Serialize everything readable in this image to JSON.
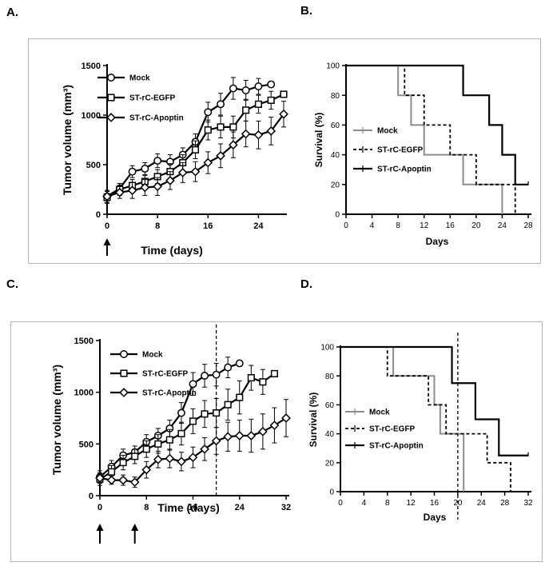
{
  "panel_letters": [
    "A.",
    "B.",
    "C.",
    "D."
  ],
  "colors": {
    "gray_line": "#8c8c8c",
    "box_border": "#b5b5b5",
    "black": "#000000"
  },
  "chart_data": [
    {
      "id": "A",
      "type": "line",
      "title": "",
      "xlabel": "Time (days)",
      "ylabel": "Tumor volume (mm³)",
      "xlim": [
        0,
        28
      ],
      "ylim": [
        0,
        1500
      ],
      "xticks": [
        0,
        8,
        16,
        24
      ],
      "yticks": [
        0,
        500,
        1000,
        1500
      ],
      "legend": [
        "Mock",
        "ST-rC-EGFP",
        "ST-rC-Apoptin"
      ],
      "arrows_at_day": [
        0
      ],
      "series": [
        {
          "name": "Mock",
          "marker": "circle",
          "x": [
            0,
            2,
            4,
            6,
            8,
            10,
            12,
            14,
            16,
            18,
            20,
            22,
            24,
            26
          ],
          "y": [
            180,
            260,
            430,
            460,
            540,
            530,
            600,
            730,
            1030,
            1110,
            1270,
            1250,
            1290,
            1310
          ],
          "err": [
            60,
            50,
            60,
            60,
            70,
            70,
            70,
            80,
            100,
            110,
            110,
            100,
            80,
            0
          ]
        },
        {
          "name": "ST-rC-EGFP",
          "marker": "square",
          "x": [
            0,
            2,
            4,
            6,
            8,
            10,
            12,
            14,
            16,
            18,
            20,
            22,
            24,
            26,
            28
          ],
          "y": [
            170,
            250,
            290,
            330,
            380,
            430,
            520,
            650,
            850,
            880,
            880,
            1050,
            1110,
            1150,
            1210
          ],
          "err": [
            60,
            60,
            60,
            60,
            70,
            80,
            80,
            90,
            100,
            110,
            110,
            110,
            90,
            90,
            0
          ]
        },
        {
          "name": "ST-rC-Apoptin",
          "marker": "diamond",
          "x": [
            0,
            2,
            4,
            6,
            8,
            10,
            12,
            14,
            16,
            18,
            20,
            22,
            24,
            26,
            28
          ],
          "y": [
            180,
            220,
            240,
            270,
            280,
            340,
            420,
            430,
            520,
            590,
            700,
            810,
            800,
            840,
            1010
          ],
          "err": [
            60,
            60,
            80,
            80,
            90,
            90,
            100,
            100,
            110,
            120,
            130,
            130,
            140,
            140,
            130
          ]
        }
      ]
    },
    {
      "id": "B",
      "type": "line",
      "title": "",
      "xlabel": "Days",
      "ylabel": "Survival (%)",
      "xlim": [
        0,
        28
      ],
      "ylim": [
        0,
        100
      ],
      "xticks": [
        0,
        4,
        8,
        12,
        16,
        20,
        24,
        28
      ],
      "yticks": [
        0,
        20,
        40,
        60,
        80,
        100
      ],
      "legend": [
        "Mock",
        "ST-rC-EGFP",
        "ST-rC-Apoptin"
      ],
      "series": [
        {
          "name": "Mock",
          "style": "gray-solid",
          "x": [
            0,
            8,
            8,
            10,
            10,
            12,
            12,
            18,
            18,
            24,
            24
          ],
          "y": [
            100,
            100,
            80,
            80,
            60,
            60,
            40,
            40,
            20,
            20,
            0
          ]
        },
        {
          "name": "ST-rC-EGFP",
          "style": "black-dashed",
          "x": [
            0,
            9,
            9,
            12,
            12,
            16,
            16,
            20,
            20,
            26,
            26
          ],
          "y": [
            100,
            100,
            80,
            80,
            60,
            60,
            40,
            40,
            20,
            20,
            0
          ]
        },
        {
          "name": "ST-rC-Apoptin",
          "style": "black-solid",
          "x": [
            0,
            18,
            18,
            22,
            22,
            24,
            24,
            26,
            26,
            28
          ],
          "y": [
            100,
            100,
            80,
            80,
            60,
            60,
            40,
            40,
            20,
            20
          ]
        }
      ]
    },
    {
      "id": "C",
      "type": "line",
      "title": "",
      "xlabel": "Time (days)",
      "ylabel": "Tumor volume (mm³)",
      "xlim": [
        0,
        32
      ],
      "ylim": [
        0,
        1500
      ],
      "xticks": [
        0,
        8,
        16,
        24,
        32
      ],
      "yticks": [
        0,
        500,
        1000,
        1500
      ],
      "legend": [
        "Mock",
        "ST-rC-EGFP",
        "ST-rC-Apoptin"
      ],
      "arrows_at_day": [
        0,
        6
      ],
      "dashed_vline_day": 20,
      "series": [
        {
          "name": "Mock",
          "marker": "circle",
          "x": [
            0,
            2,
            4,
            6,
            8,
            10,
            12,
            14,
            16,
            18,
            20,
            22,
            24
          ],
          "y": [
            180,
            280,
            390,
            420,
            520,
            580,
            650,
            800,
            1080,
            1160,
            1170,
            1240,
            1280
          ],
          "err": [
            60,
            60,
            60,
            60,
            70,
            70,
            80,
            100,
            110,
            110,
            110,
            100,
            0
          ]
        },
        {
          "name": "ST-rC-EGFP",
          "marker": "square",
          "x": [
            0,
            2,
            4,
            6,
            8,
            10,
            12,
            14,
            16,
            18,
            20,
            22,
            24,
            26,
            28,
            30
          ],
          "y": [
            160,
            230,
            320,
            380,
            450,
            500,
            540,
            600,
            720,
            790,
            800,
            880,
            950,
            1140,
            1100,
            1180
          ],
          "err": [
            60,
            60,
            70,
            70,
            80,
            90,
            100,
            110,
            120,
            130,
            140,
            150,
            160,
            120,
            120,
            0
          ]
        },
        {
          "name": "ST-rC-Apoptin",
          "marker": "diamond",
          "x": [
            0,
            2,
            4,
            6,
            8,
            10,
            12,
            14,
            16,
            18,
            20,
            22,
            24,
            26,
            28,
            30,
            32
          ],
          "y": [
            170,
            150,
            150,
            130,
            250,
            350,
            360,
            330,
            370,
            450,
            530,
            570,
            580,
            580,
            620,
            680,
            750
          ],
          "err": [
            40,
            40,
            50,
            50,
            80,
            80,
            90,
            90,
            100,
            110,
            130,
            140,
            150,
            160,
            170,
            170,
            180
          ]
        }
      ]
    },
    {
      "id": "D",
      "type": "line",
      "title": "",
      "xlabel": "Days",
      "ylabel": "Survival (%)",
      "xlim": [
        0,
        32
      ],
      "ylim": [
        0,
        100
      ],
      "xticks": [
        0,
        4,
        8,
        12,
        16,
        20,
        24,
        28,
        32
      ],
      "yticks": [
        0,
        20,
        40,
        60,
        80,
        100
      ],
      "legend": [
        "Mock",
        "ST-rC-EGFP",
        "ST-rC-Apoptin"
      ],
      "dashed_vline_day": 20,
      "series": [
        {
          "name": "Mock",
          "style": "gray-solid",
          "x": [
            0,
            9,
            9,
            16,
            16,
            17,
            17,
            20,
            20,
            21,
            21
          ],
          "y": [
            100,
            100,
            80,
            80,
            60,
            60,
            40,
            40,
            40,
            40,
            0
          ]
        },
        {
          "name": "ST-rC-EGFP",
          "style": "black-dashed",
          "x": [
            0,
            8,
            8,
            15,
            15,
            18,
            18,
            25,
            25,
            29,
            29
          ],
          "y": [
            100,
            100,
            80,
            80,
            60,
            60,
            40,
            40,
            20,
            20,
            0
          ]
        },
        {
          "name": "ST-rC-Apoptin",
          "style": "black-solid",
          "x": [
            0,
            19,
            19,
            23,
            23,
            27,
            27,
            32
          ],
          "y": [
            100,
            100,
            75,
            75,
            50,
            50,
            25,
            25
          ]
        }
      ]
    }
  ]
}
